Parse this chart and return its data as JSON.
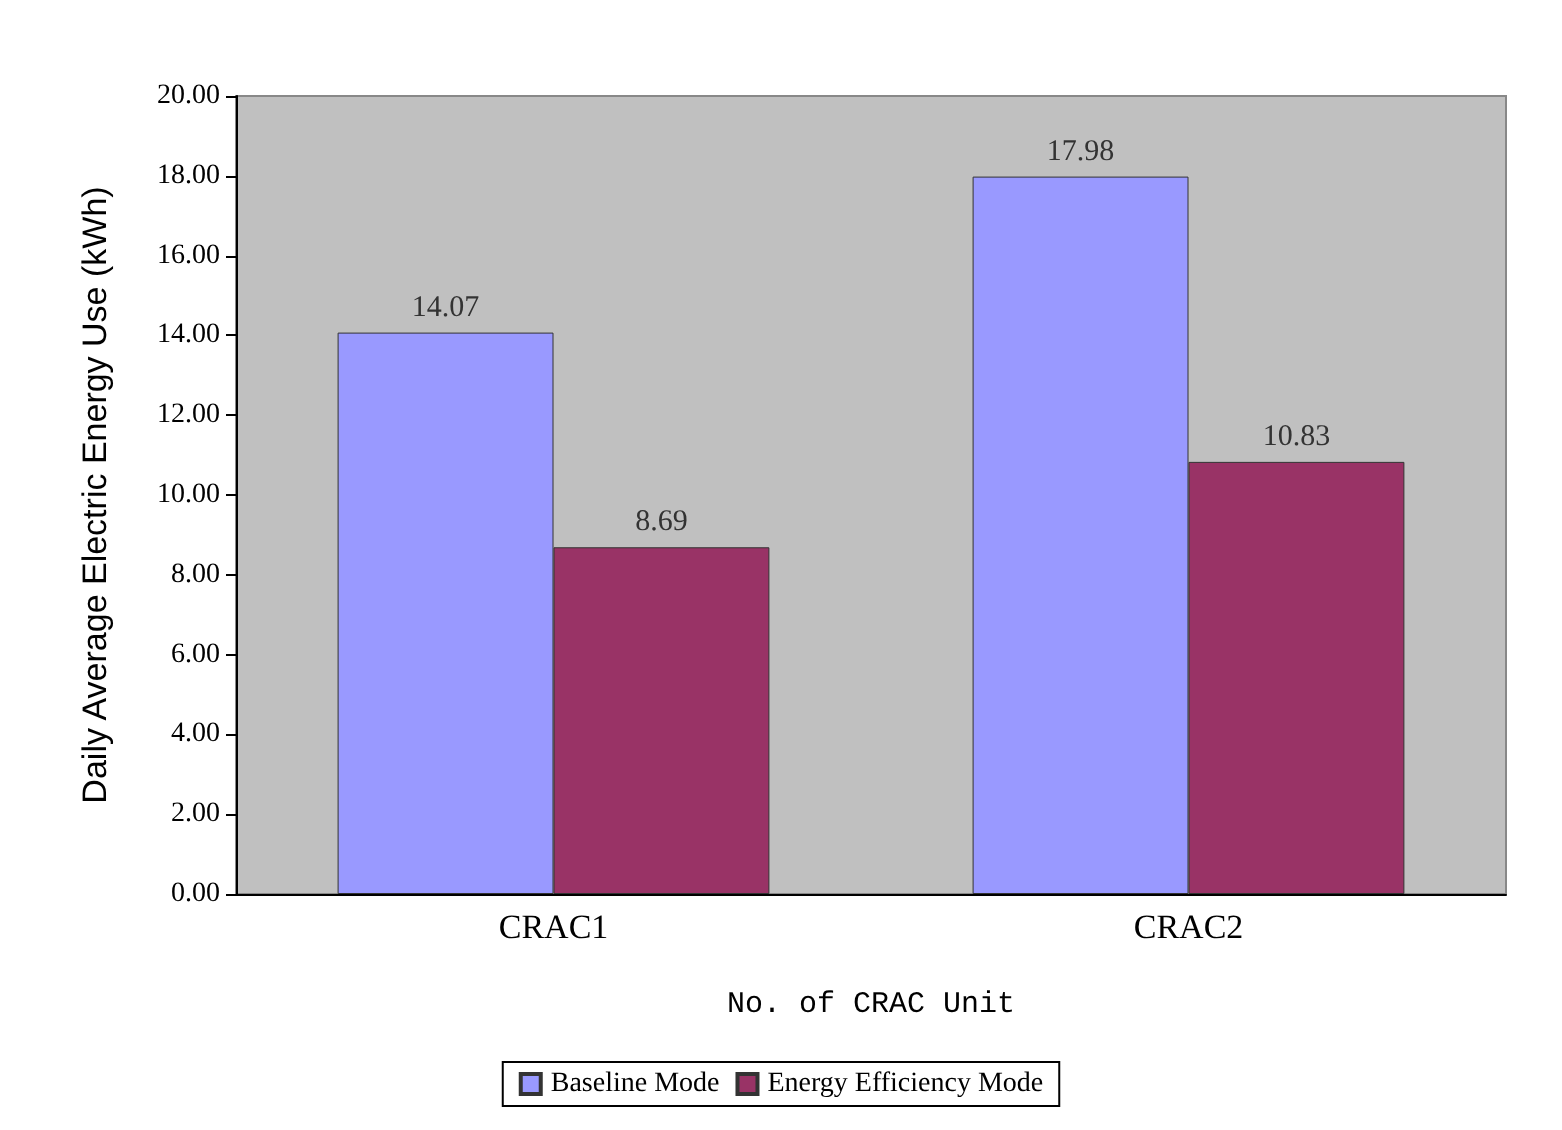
{
  "chart_data": {
    "type": "bar",
    "xlabel": "No. of CRAC Unit",
    "ylabel": "Daily Average Electric Energy Use (kWh)",
    "categories": [
      "CRAC1",
      "CRAC2"
    ],
    "series": [
      {
        "name": "Baseline Mode",
        "color": "#9999ff",
        "values": [
          14.07,
          17.98
        ]
      },
      {
        "name": "Energy Efficiency Mode",
        "color": "#993366",
        "values": [
          8.69,
          10.83
        ]
      }
    ],
    "ylim": [
      0,
      20
    ],
    "yticks": [
      {
        "value": 0,
        "label": "0.00"
      },
      {
        "value": 2,
        "label": "2.00"
      },
      {
        "value": 4,
        "label": "4.00"
      },
      {
        "value": 6,
        "label": "6.00"
      },
      {
        "value": 8,
        "label": "8.00"
      },
      {
        "value": 10,
        "label": "10.00"
      },
      {
        "value": 12,
        "label": "12.00"
      },
      {
        "value": 14,
        "label": "14.00"
      },
      {
        "value": 16,
        "label": "16.00"
      },
      {
        "value": 18,
        "label": "18.00"
      },
      {
        "value": 20,
        "label": "20.00"
      }
    ],
    "data_labels": true,
    "grid": false,
    "legend": "bottom"
  }
}
